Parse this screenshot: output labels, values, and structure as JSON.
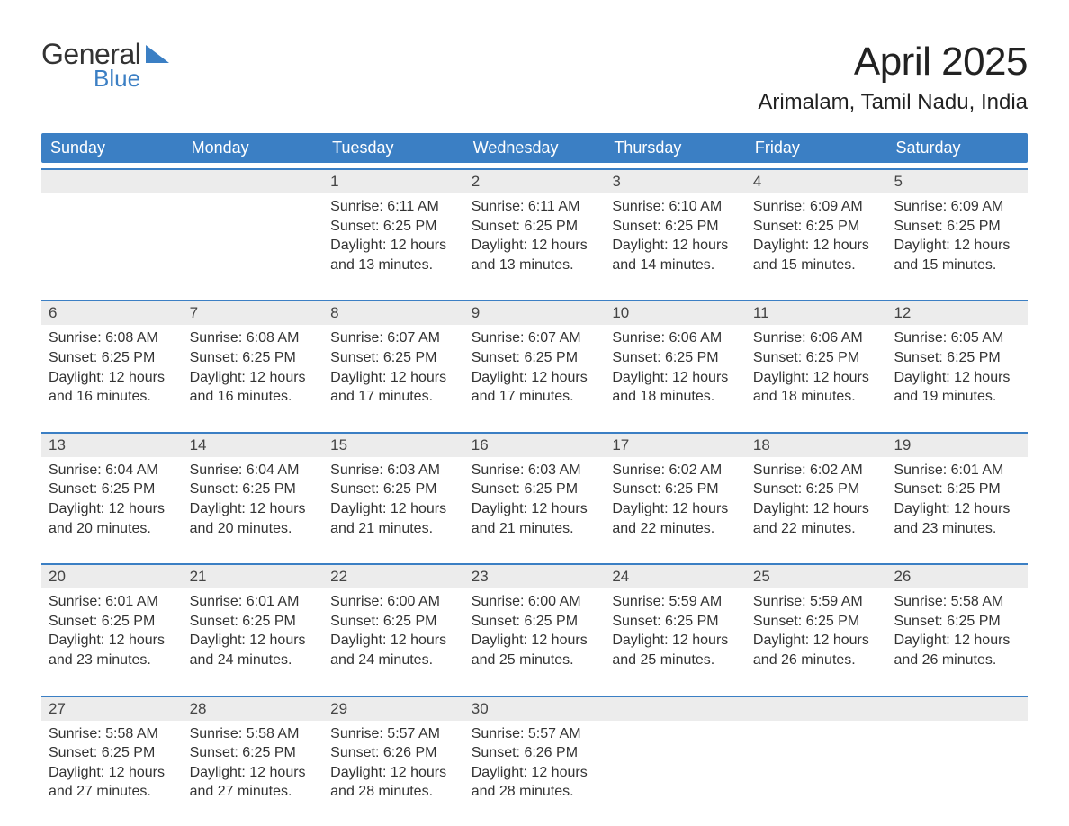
{
  "logo": {
    "line1": "General",
    "line2": "Blue"
  },
  "header": {
    "month_title": "April 2025",
    "location": "Arimalam, Tamil Nadu, India"
  },
  "colors": {
    "header_bg": "#3b7fc4",
    "daynum_bg": "#ececec",
    "page_bg": "#ffffff",
    "text": "#333333"
  },
  "calendar": {
    "days_of_week": [
      "Sunday",
      "Monday",
      "Tuesday",
      "Wednesday",
      "Thursday",
      "Friday",
      "Saturday"
    ],
    "weeks": [
      [
        {
          "num": "",
          "lines": []
        },
        {
          "num": "",
          "lines": []
        },
        {
          "num": "1",
          "lines": [
            "Sunrise: 6:11 AM",
            "Sunset: 6:25 PM",
            "Daylight: 12 hours",
            "and 13 minutes."
          ]
        },
        {
          "num": "2",
          "lines": [
            "Sunrise: 6:11 AM",
            "Sunset: 6:25 PM",
            "Daylight: 12 hours",
            "and 13 minutes."
          ]
        },
        {
          "num": "3",
          "lines": [
            "Sunrise: 6:10 AM",
            "Sunset: 6:25 PM",
            "Daylight: 12 hours",
            "and 14 minutes."
          ]
        },
        {
          "num": "4",
          "lines": [
            "Sunrise: 6:09 AM",
            "Sunset: 6:25 PM",
            "Daylight: 12 hours",
            "and 15 minutes."
          ]
        },
        {
          "num": "5",
          "lines": [
            "Sunrise: 6:09 AM",
            "Sunset: 6:25 PM",
            "Daylight: 12 hours",
            "and 15 minutes."
          ]
        }
      ],
      [
        {
          "num": "6",
          "lines": [
            "Sunrise: 6:08 AM",
            "Sunset: 6:25 PM",
            "Daylight: 12 hours",
            "and 16 minutes."
          ]
        },
        {
          "num": "7",
          "lines": [
            "Sunrise: 6:08 AM",
            "Sunset: 6:25 PM",
            "Daylight: 12 hours",
            "and 16 minutes."
          ]
        },
        {
          "num": "8",
          "lines": [
            "Sunrise: 6:07 AM",
            "Sunset: 6:25 PM",
            "Daylight: 12 hours",
            "and 17 minutes."
          ]
        },
        {
          "num": "9",
          "lines": [
            "Sunrise: 6:07 AM",
            "Sunset: 6:25 PM",
            "Daylight: 12 hours",
            "and 17 minutes."
          ]
        },
        {
          "num": "10",
          "lines": [
            "Sunrise: 6:06 AM",
            "Sunset: 6:25 PM",
            "Daylight: 12 hours",
            "and 18 minutes."
          ]
        },
        {
          "num": "11",
          "lines": [
            "Sunrise: 6:06 AM",
            "Sunset: 6:25 PM",
            "Daylight: 12 hours",
            "and 18 minutes."
          ]
        },
        {
          "num": "12",
          "lines": [
            "Sunrise: 6:05 AM",
            "Sunset: 6:25 PM",
            "Daylight: 12 hours",
            "and 19 minutes."
          ]
        }
      ],
      [
        {
          "num": "13",
          "lines": [
            "Sunrise: 6:04 AM",
            "Sunset: 6:25 PM",
            "Daylight: 12 hours",
            "and 20 minutes."
          ]
        },
        {
          "num": "14",
          "lines": [
            "Sunrise: 6:04 AM",
            "Sunset: 6:25 PM",
            "Daylight: 12 hours",
            "and 20 minutes."
          ]
        },
        {
          "num": "15",
          "lines": [
            "Sunrise: 6:03 AM",
            "Sunset: 6:25 PM",
            "Daylight: 12 hours",
            "and 21 minutes."
          ]
        },
        {
          "num": "16",
          "lines": [
            "Sunrise: 6:03 AM",
            "Sunset: 6:25 PM",
            "Daylight: 12 hours",
            "and 21 minutes."
          ]
        },
        {
          "num": "17",
          "lines": [
            "Sunrise: 6:02 AM",
            "Sunset: 6:25 PM",
            "Daylight: 12 hours",
            "and 22 minutes."
          ]
        },
        {
          "num": "18",
          "lines": [
            "Sunrise: 6:02 AM",
            "Sunset: 6:25 PM",
            "Daylight: 12 hours",
            "and 22 minutes."
          ]
        },
        {
          "num": "19",
          "lines": [
            "Sunrise: 6:01 AM",
            "Sunset: 6:25 PM",
            "Daylight: 12 hours",
            "and 23 minutes."
          ]
        }
      ],
      [
        {
          "num": "20",
          "lines": [
            "Sunrise: 6:01 AM",
            "Sunset: 6:25 PM",
            "Daylight: 12 hours",
            "and 23 minutes."
          ]
        },
        {
          "num": "21",
          "lines": [
            "Sunrise: 6:01 AM",
            "Sunset: 6:25 PM",
            "Daylight: 12 hours",
            "and 24 minutes."
          ]
        },
        {
          "num": "22",
          "lines": [
            "Sunrise: 6:00 AM",
            "Sunset: 6:25 PM",
            "Daylight: 12 hours",
            "and 24 minutes."
          ]
        },
        {
          "num": "23",
          "lines": [
            "Sunrise: 6:00 AM",
            "Sunset: 6:25 PM",
            "Daylight: 12 hours",
            "and 25 minutes."
          ]
        },
        {
          "num": "24",
          "lines": [
            "Sunrise: 5:59 AM",
            "Sunset: 6:25 PM",
            "Daylight: 12 hours",
            "and 25 minutes."
          ]
        },
        {
          "num": "25",
          "lines": [
            "Sunrise: 5:59 AM",
            "Sunset: 6:25 PM",
            "Daylight: 12 hours",
            "and 26 minutes."
          ]
        },
        {
          "num": "26",
          "lines": [
            "Sunrise: 5:58 AM",
            "Sunset: 6:25 PM",
            "Daylight: 12 hours",
            "and 26 minutes."
          ]
        }
      ],
      [
        {
          "num": "27",
          "lines": [
            "Sunrise: 5:58 AM",
            "Sunset: 6:25 PM",
            "Daylight: 12 hours",
            "and 27 minutes."
          ]
        },
        {
          "num": "28",
          "lines": [
            "Sunrise: 5:58 AM",
            "Sunset: 6:25 PM",
            "Daylight: 12 hours",
            "and 27 minutes."
          ]
        },
        {
          "num": "29",
          "lines": [
            "Sunrise: 5:57 AM",
            "Sunset: 6:26 PM",
            "Daylight: 12 hours",
            "and 28 minutes."
          ]
        },
        {
          "num": "30",
          "lines": [
            "Sunrise: 5:57 AM",
            "Sunset: 6:26 PM",
            "Daylight: 12 hours",
            "and 28 minutes."
          ]
        },
        {
          "num": "",
          "lines": []
        },
        {
          "num": "",
          "lines": []
        },
        {
          "num": "",
          "lines": []
        }
      ]
    ]
  }
}
